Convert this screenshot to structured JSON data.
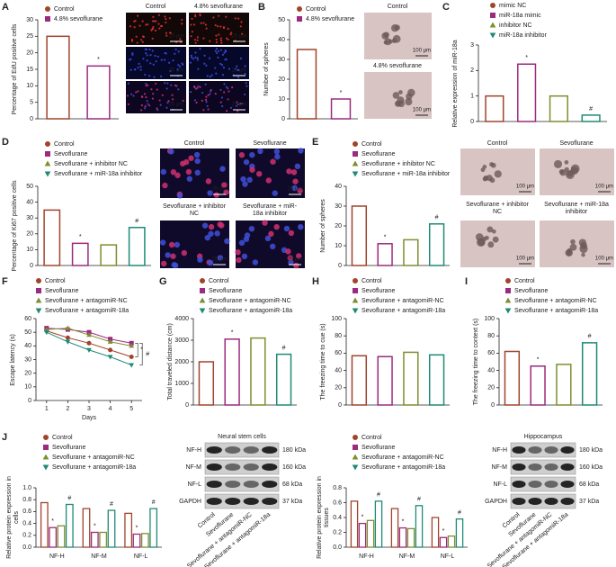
{
  "chart_data": [
    {
      "panel": "A",
      "type": "bar",
      "ylabel": "Percentage of EdU positive cells",
      "categories": [
        "Control",
        "4.8% sevoflurane"
      ],
      "values": [
        25,
        16
      ],
      "colors": [
        "#a0442c",
        "#9c2a7e"
      ],
      "ylim": [
        0,
        30
      ],
      "yticks": [
        0,
        5,
        10,
        15,
        20,
        25,
        30
      ],
      "annotations": [
        {
          "index": 1,
          "text": "*"
        }
      ]
    },
    {
      "panel": "B",
      "type": "bar",
      "ylabel": "Number of spheres",
      "categories": [
        "Control",
        "4.8% sevoflurane"
      ],
      "values": [
        35,
        10
      ],
      "colors": [
        "#a0442c",
        "#9c2a7e"
      ],
      "ylim": [
        0,
        50
      ],
      "yticks": [
        0,
        10,
        20,
        30,
        40,
        50
      ],
      "annotations": [
        {
          "index": 1,
          "text": "*"
        }
      ]
    },
    {
      "panel": "C",
      "type": "bar",
      "ylabel": "Relative  expression of miR-18a",
      "categories": [
        "mimic NC",
        "miR-18a mimic",
        "inhibitor NC",
        "miR-18a inhibitor"
      ],
      "values": [
        1.0,
        2.25,
        1.0,
        0.25
      ],
      "colors": [
        "#a0442c",
        "#9c2a7e",
        "#7d8f2e",
        "#1e8a76"
      ],
      "ylim": [
        0,
        3
      ],
      "yticks": [
        0,
        1,
        2,
        3
      ],
      "annotations": [
        {
          "index": 1,
          "text": "*"
        },
        {
          "index": 3,
          "text": "#"
        }
      ]
    },
    {
      "panel": "D",
      "type": "bar",
      "ylabel": "Percentage of Ki67 positive cells",
      "categories": [
        "Control",
        "Sevoflurane",
        "Sevoflurane + inhibitor NC",
        "Sevoflurane + miR-18a inhibitor"
      ],
      "values": [
        35,
        14,
        13,
        24
      ],
      "colors": [
        "#a0442c",
        "#9c2a7e",
        "#7d8f2e",
        "#1e8a76"
      ],
      "ylim": [
        0,
        50
      ],
      "yticks": [
        0,
        10,
        20,
        30,
        40,
        50
      ],
      "annotations": [
        {
          "index": 1,
          "text": "*"
        },
        {
          "index": 3,
          "text": "#"
        }
      ]
    },
    {
      "panel": "E",
      "type": "bar",
      "ylabel": "Number of spheres",
      "categories": [
        "Control",
        "Sevoflurane",
        "Sevoflurane + inhibitor NC",
        "Sevoflurane + miR-18a inhibitor"
      ],
      "values": [
        30,
        11,
        13,
        21
      ],
      "colors": [
        "#a0442c",
        "#9c2a7e",
        "#7d8f2e",
        "#1e8a76"
      ],
      "ylim": [
        0,
        40
      ],
      "yticks": [
        0,
        10,
        20,
        30,
        40
      ],
      "annotations": [
        {
          "index": 1,
          "text": "*"
        },
        {
          "index": 3,
          "text": "#"
        }
      ]
    },
    {
      "panel": "F",
      "type": "line",
      "xlabel": "Days",
      "ylabel": "Escape latency (s)",
      "x": [
        1,
        2,
        3,
        4,
        5
      ],
      "xlim": [
        0.5,
        5.5
      ],
      "xticks": [
        1,
        2,
        3,
        4,
        5
      ],
      "ylim": [
        0,
        60
      ],
      "yticks": [
        0,
        10,
        20,
        30,
        40,
        50,
        60
      ],
      "series": [
        {
          "name": "Control",
          "color": "#a0442c",
          "values": [
            51,
            46,
            42,
            37,
            32
          ]
        },
        {
          "name": "Sevoflurane",
          "color": "#9c2a7e",
          "values": [
            53,
            52,
            50,
            45,
            42
          ]
        },
        {
          "name": "Sevoflurane + antagomiR-NC",
          "color": "#7d8f2e",
          "values": [
            52,
            53,
            48,
            43,
            40
          ]
        },
        {
          "name": "Sevoflurane + antagomiR-18a",
          "color": "#1e8a76",
          "values": [
            50,
            43,
            37,
            32,
            26
          ]
        }
      ],
      "annotations": [
        {
          "text": "*"
        },
        {
          "text": "#"
        }
      ]
    },
    {
      "panel": "G",
      "type": "bar",
      "ylabel": "Total traveled distance (cm)",
      "categories": [
        "Control",
        "Sevoflurane",
        "Sevoflurane + antagomiR-NC",
        "Sevoflurane + antagomiR-18a"
      ],
      "values": [
        2000,
        3050,
        3100,
        2350
      ],
      "colors": [
        "#a0442c",
        "#9c2a7e",
        "#7d8f2e",
        "#1e8a76"
      ],
      "ylim": [
        0,
        4000
      ],
      "yticks": [
        0,
        1000,
        2000,
        3000,
        4000
      ],
      "annotations": [
        {
          "index": 1,
          "text": "*"
        },
        {
          "index": 3,
          "text": "#"
        }
      ]
    },
    {
      "panel": "H",
      "type": "bar",
      "ylabel": "The freezing time to cue (s)",
      "categories": [
        "Control",
        "Sevoflurane",
        "Sevoflurane + antagomiR-NC",
        "Sevoflurane + antagomiR-18a"
      ],
      "values": [
        57,
        56,
        61,
        58
      ],
      "colors": [
        "#a0442c",
        "#9c2a7e",
        "#7d8f2e",
        "#1e8a76"
      ],
      "ylim": [
        0,
        100
      ],
      "yticks": [
        0,
        20,
        40,
        60,
        80,
        100
      ]
    },
    {
      "panel": "I",
      "type": "bar",
      "ylabel": "The freezing time to context (s)",
      "categories": [
        "Control",
        "Sevoflurane",
        "Sevoflurane + antagomiR-NC",
        "Sevoflurane + antagomiR-18a"
      ],
      "values": [
        62,
        45,
        47,
        72
      ],
      "colors": [
        "#a0442c",
        "#9c2a7e",
        "#7d8f2e",
        "#1e8a76"
      ],
      "ylim": [
        0,
        100
      ],
      "yticks": [
        0,
        20,
        40,
        60,
        80,
        100
      ],
      "annotations": [
        {
          "index": 1,
          "text": "*"
        },
        {
          "index": 3,
          "text": "#"
        }
      ]
    },
    {
      "panel": "J",
      "type": "grouped_bar",
      "ylabel": "Relative protein expression in cells",
      "categories": [
        "NF-H",
        "NF-M",
        "NF-L"
      ],
      "series": [
        {
          "name": "Control",
          "color": "#a0442c",
          "values": [
            0.75,
            0.65,
            0.57
          ]
        },
        {
          "name": "Sevoflurane",
          "color": "#9c2a7e",
          "values": [
            0.33,
            0.25,
            0.22
          ]
        },
        {
          "name": "Sevoflurane + antagomiR-NC",
          "color": "#7d8f2e",
          "values": [
            0.36,
            0.25,
            0.23
          ]
        },
        {
          "name": "Sevoflurane + antagomiR-18a",
          "color": "#1e8a76",
          "values": [
            0.72,
            0.62,
            0.65
          ]
        }
      ],
      "ylim": [
        0,
        1
      ],
      "yticks": [
        {
          "value": 0,
          "label": "0.0"
        },
        0.2,
        0.4,
        0.6,
        0.8,
        {
          "value": 1,
          "label": "1.0"
        }
      ],
      "annotations": [
        {
          "series": 1,
          "category": 0,
          "text": "*"
        },
        {
          "series": 1,
          "category": 1,
          "text": "*"
        },
        {
          "series": 1,
          "category": 2,
          "text": "*"
        },
        {
          "series": 3,
          "category": 0,
          "text": "#"
        },
        {
          "series": 3,
          "category": 1,
          "text": "#"
        },
        {
          "series": 3,
          "category": 2,
          "text": "#"
        }
      ]
    },
    {
      "type": "grouped_bar",
      "ylabel": "Relative protein expression in tissues",
      "categories": [
        "NF-H",
        "NF-M",
        "NF-L"
      ],
      "series": [
        {
          "name": "Control",
          "color": "#a0442c",
          "values": [
            0.62,
            0.52,
            0.4
          ]
        },
        {
          "name": "Sevoflurane",
          "color": "#9c2a7e",
          "values": [
            0.32,
            0.26,
            0.13
          ]
        },
        {
          "name": "Sevoflurane + antagomiR-NC",
          "color": "#7d8f2e",
          "values": [
            0.36,
            0.25,
            0.15
          ]
        },
        {
          "name": "Sevoflurane + antagomiR-18a",
          "color": "#1e8a76",
          "values": [
            0.62,
            0.56,
            0.38
          ]
        }
      ],
      "ylim": [
        0,
        0.8
      ],
      "yticks": [
        {
          "value": 0,
          "label": "0.0"
        },
        0.2,
        0.4,
        0.6,
        0.8
      ],
      "annotations": [
        {
          "series": 1,
          "category": 0,
          "text": "*"
        },
        {
          "series": 1,
          "category": 1,
          "text": "*"
        },
        {
          "series": 1,
          "category": 2,
          "text": "*"
        },
        {
          "series": 3,
          "category": 0,
          "text": "#"
        },
        {
          "series": 3,
          "category": 1,
          "text": "#"
        },
        {
          "series": 3,
          "category": 2,
          "text": "#"
        }
      ]
    }
  ],
  "micrographs": [
    {
      "labels": [
        "Control",
        "4.8% sevoflurane"
      ],
      "scale_bar": "25 μm"
    },
    {
      "labels": [
        "Control",
        "4.8% sevoflurane"
      ],
      "scale_bar": "100 μm"
    },
    {
      "labels": [
        "Control",
        "Sevoflurane",
        "Sevoflurane + inhibitor NC",
        "Sevoflurane + miR-18a inhibitor"
      ],
      "scale_bar": "25 μm"
    },
    {
      "labels": [
        "Control",
        "Sevoflurane",
        "Sevoflurane + inhibitor NC",
        "Sevoflurane + miR-18a inhibitor"
      ],
      "scale_bar": "100 μm"
    }
  ],
  "blots": [
    {
      "title": "Neural stem cells",
      "rows": [
        "NF-H",
        "NF-M",
        "NF-L",
        "GAPDH"
      ],
      "sizes": [
        "180 kDa",
        "160 kDa",
        "68 kDa",
        "37 kDa"
      ],
      "lanes": [
        "Control",
        "Sevoflurane",
        "Sevoflurane + antagomiR-NC",
        "Sevoflurane + antagomiR-18a"
      ]
    },
    {
      "title": "Hippocampus",
      "rows": [
        "NF-H",
        "NF-M",
        "NF-L",
        "GAPDH"
      ],
      "sizes": [
        "180 kDa",
        "160 kDa",
        "68 kDa",
        "37 kDa"
      ],
      "lanes": [
        "Control",
        "Sevoflurane",
        "Sevoflurane + antagomiR-NC",
        "Sevoflurane + antagomiR-18a"
      ]
    }
  ]
}
